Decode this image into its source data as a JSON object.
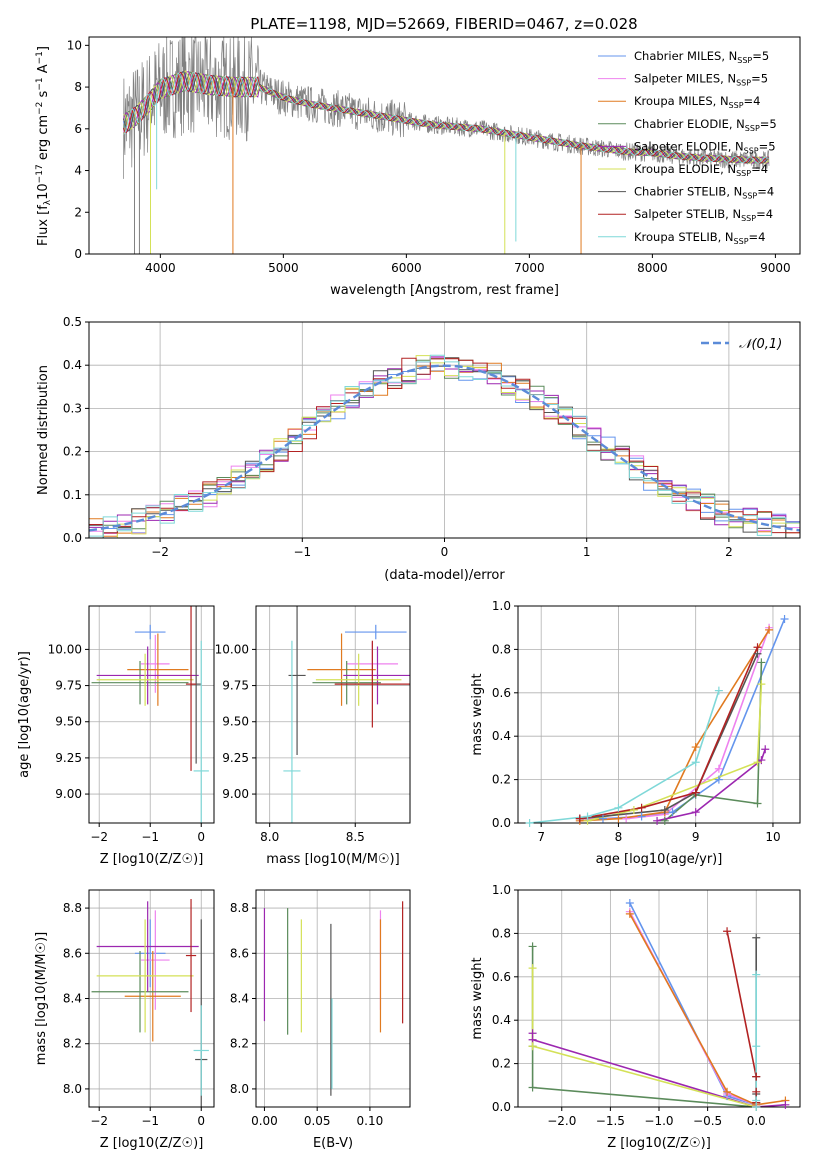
{
  "figure": {
    "title": "PLATE=1198, MJD=52669, FIBERID=0467, z=0.028"
  },
  "series_styles": [
    {
      "name": "Chabrier MILES, N_SSP=5",
      "label_main": "Chabrier MILES, N",
      "label_sub": "SSP",
      "label_end": "=5",
      "color": "#6495ed"
    },
    {
      "name": "Salpeter MILES, N_SSP=5",
      "label_main": "Salpeter MILES, N",
      "label_sub": "SSP",
      "label_end": "=5",
      "color": "#ee82ee"
    },
    {
      "name": "Kroupa MILES, N_SSP=4",
      "label_main": "Kroupa MILES, N",
      "label_sub": "SSP",
      "label_end": "=4",
      "color": "#e07a20"
    },
    {
      "name": "Chabrier ELODIE, N_SSP=5",
      "label_main": "Chabrier ELODIE, N",
      "label_sub": "SSP",
      "label_end": "=5",
      "color": "#5b8b5b"
    },
    {
      "name": "Salpeter ELODIE, N_SSP=5",
      "label_main": "Salpeter ELODIE, N",
      "label_sub": "SSP",
      "label_end": "=5",
      "color": "#9c27b0"
    },
    {
      "name": "Kroupa ELODIE, N_SSP=4",
      "label_main": "Kroupa ELODIE, N",
      "label_sub": "SSP",
      "label_end": "=4",
      "color": "#d4e157"
    },
    {
      "name": "Chabrier STELIB, N_SSP=4",
      "label_main": "Chabrier STELIB, N",
      "label_sub": "SSP",
      "label_end": "=4",
      "color": "#555555"
    },
    {
      "name": "Salpeter STELIB, N_SSP=4",
      "label_main": "Salpeter STELIB, N",
      "label_sub": "SSP",
      "label_end": "=4",
      "color": "#b22222"
    },
    {
      "name": "Kroupa STELIB, N_SSP=4",
      "label_main": "Kroupa STELIB, N",
      "label_sub": "SSP",
      "label_end": "=4",
      "color": "#7fd8d8"
    }
  ],
  "chart_data": [
    {
      "id": "spectrum",
      "type": "line",
      "title": "PLATE=1198, MJD=52669, FIBERID=0467, z=0.028",
      "xlabel": "wavelength [Angstrom, rest frame]",
      "ylabel": "Flux [f_λ 10^-17 erg cm^-2 s^-1 A^-1]",
      "xlim": [
        3420,
        9200
      ],
      "ylim": [
        0,
        10.4
      ],
      "xticks": [
        4000,
        5000,
        6000,
        7000,
        8000,
        9000
      ],
      "yticks": [
        0,
        2,
        4,
        6,
        8,
        10
      ],
      "legend_position": "top-right",
      "data_color": "#808080",
      "continuum": {
        "x": [
          3700,
          3800,
          3900,
          4000,
          4200,
          4400,
          4600,
          4800,
          5000,
          5200,
          5400,
          5600,
          5800,
          6000,
          6200,
          6400,
          6600,
          6800,
          7000,
          7200,
          7400,
          7600,
          7800,
          8000,
          8200,
          8400,
          8600,
          8800,
          8950
        ],
        "y": [
          6.2,
          6.6,
          7.2,
          7.9,
          8.3,
          8.1,
          8.0,
          8.0,
          7.5,
          7.2,
          7.0,
          6.8,
          6.6,
          6.4,
          6.2,
          6.1,
          6.0,
          5.8,
          5.6,
          5.4,
          5.2,
          5.05,
          4.9,
          4.85,
          4.7,
          4.6,
          4.55,
          4.5,
          4.5
        ]
      },
      "dropouts": [
        {
          "x": 3790,
          "ymin": 0,
          "color": "#808080"
        },
        {
          "x": 3830,
          "ymin": 0,
          "color": "#808080"
        },
        {
          "x": 3920,
          "ymin": 0,
          "color": "#d4e157"
        },
        {
          "x": 3970,
          "ymin": 3.1,
          "color": "#7fd8d8"
        },
        {
          "x": 4590,
          "ymin": 0,
          "color": "#e07a20"
        },
        {
          "x": 6800,
          "ymin": 0,
          "color": "#d4e157"
        },
        {
          "x": 6890,
          "ymin": 0.6,
          "color": "#7fd8d8"
        },
        {
          "x": 7420,
          "ymin": 0,
          "color": "#e07a20"
        }
      ]
    },
    {
      "id": "residuals",
      "type": "histogram",
      "xlabel": "(data-model)/error",
      "ylabel": "Normed distribution",
      "xlim": [
        -2.5,
        2.5
      ],
      "ylim": [
        0,
        0.5
      ],
      "xticks": [
        -2,
        -1,
        0,
        1,
        2
      ],
      "yticks": [
        0.0,
        0.1,
        0.2,
        0.3,
        0.4,
        0.5
      ],
      "bin_width": 0.1,
      "reference_curve": {
        "name": "𝒩(0,1)",
        "color": "#5b8bd8",
        "mean": 0,
        "sigma": 1
      },
      "legend_position": "top-right",
      "grid": true
    },
    {
      "id": "age-vs-Z",
      "type": "errorbar",
      "xlabel": "Z [log10(Z/Z☉)]",
      "ylabel": "age [log10(age/yr)]",
      "xlim": [
        -2.2,
        0.25
      ],
      "ylim": [
        8.8,
        10.3
      ],
      "xticks": [
        -2,
        -1,
        0
      ],
      "yticks": [
        9.0,
        9.25,
        9.5,
        9.75,
        10.0
      ],
      "points": [
        {
          "x": -1.0,
          "xerr": 0.3,
          "y": 10.12,
          "yerr": 0.05
        },
        {
          "x": -0.9,
          "xerr": 0.28,
          "y": 9.9,
          "yerr": 0.2
        },
        {
          "x": -0.85,
          "xerr": 0.6,
          "y": 9.86,
          "yerr": 0.25
        },
        {
          "x": -1.2,
          "xerr": 0.95,
          "y": 9.77,
          "yerr": 0.15
        },
        {
          "x": -1.05,
          "xerr": 1.0,
          "y": 9.82,
          "yerr": 0.2
        },
        {
          "x": -1.1,
          "xerr": 0.95,
          "y": 9.79,
          "yerr": 0.18
        },
        {
          "x": -0.1,
          "xerr": 0.1,
          "y": 9.76,
          "yerr": 0.55
        },
        {
          "x": -0.2,
          "xerr": 0.1,
          "y": 9.76,
          "yerr": 0.6
        },
        {
          "x": 0.0,
          "xerr": 0.15,
          "y": 9.16,
          "yerr": 0.9
        }
      ]
    },
    {
      "id": "age-vs-mass",
      "type": "errorbar",
      "xlabel": "mass [log10(M/M☉)]",
      "ylabel": "",
      "xlim": [
        7.92,
        8.82
      ],
      "ylim": [
        8.8,
        10.3
      ],
      "xticks": [
        8.0,
        8.5
      ],
      "yticks": [
        9.0,
        9.25,
        9.5,
        9.75,
        10.0
      ],
      "points": [
        {
          "x": 8.62,
          "xerr": 0.18,
          "y": 10.12,
          "yerr": 0.05
        },
        {
          "x": 8.6,
          "xerr": 0.15,
          "y": 9.9,
          "yerr": 0.15
        },
        {
          "x": 8.42,
          "xerr": 0.2,
          "y": 9.86,
          "yerr": 0.25
        },
        {
          "x": 8.45,
          "xerr": 0.2,
          "y": 9.77,
          "yerr": 0.15
        },
        {
          "x": 8.63,
          "xerr": 0.2,
          "y": 9.82,
          "yerr": 0.2
        },
        {
          "x": 8.52,
          "xerr": 0.25,
          "y": 9.79,
          "yerr": 0.18
        },
        {
          "x": 8.16,
          "xerr": 0.05,
          "y": 9.82,
          "yerr": 0.55
        },
        {
          "x": 8.6,
          "xerr": 0.22,
          "y": 9.76,
          "yerr": 0.3
        },
        {
          "x": 8.13,
          "xerr": 0.05,
          "y": 9.16,
          "yerr": 0.9
        }
      ]
    },
    {
      "id": "weight-vs-age",
      "type": "line",
      "xlabel": "age [log10(age/yr)]",
      "ylabel": "mass weight",
      "xlim": [
        6.7,
        10.35
      ],
      "ylim": [
        0,
        1.0
      ],
      "xticks": [
        7,
        8,
        9,
        10
      ],
      "yticks": [
        0.0,
        0.2,
        0.4,
        0.6,
        0.8,
        1.0
      ],
      "series": [
        {
          "x": [
            7.8,
            8.3,
            8.7,
            9.3,
            10.15
          ],
          "y": [
            0.02,
            0.03,
            0.05,
            0.2,
            0.94
          ]
        },
        {
          "x": [
            7.5,
            8.1,
            8.6,
            9.3,
            9.95
          ],
          "y": [
            0.02,
            0.02,
            0.04,
            0.25,
            0.9
          ]
        },
        {
          "x": [
            7.5,
            8.0,
            8.6,
            9.0,
            9.95
          ],
          "y": [
            0.01,
            0.02,
            0.05,
            0.35,
            0.89
          ]
        },
        {
          "x": [
            8.6,
            9.0,
            9.8,
            9.85
          ],
          "y": [
            0.01,
            0.13,
            0.09,
            0.74
          ]
        },
        {
          "x": [
            8.5,
            9.0,
            9.85,
            9.9
          ],
          "y": [
            0.01,
            0.05,
            0.29,
            0.34
          ]
        },
        {
          "x": [
            7.6,
            8.2,
            9.8,
            9.85
          ],
          "y": [
            0.01,
            0.06,
            0.28,
            0.64
          ]
        },
        {
          "x": [
            7.5,
            8.6,
            9.0,
            9.8
          ],
          "y": [
            0.02,
            0.06,
            0.14,
            0.78
          ]
        },
        {
          "x": [
            7.5,
            8.3,
            9.0,
            9.8
          ],
          "y": [
            0.02,
            0.07,
            0.14,
            0.81
          ]
        },
        {
          "x": [
            6.85,
            7.6,
            8.0,
            9.0,
            9.3
          ],
          "y": [
            0.0,
            0.03,
            0.07,
            0.28,
            0.61
          ]
        }
      ]
    },
    {
      "id": "mass-vs-Z",
      "type": "errorbar",
      "xlabel": "Z [log10(Z/Z☉)]",
      "ylabel": "mass [log10(M/M☉)]",
      "xlim": [
        -2.2,
        0.25
      ],
      "ylim": [
        7.92,
        8.88
      ],
      "xticks": [
        -2,
        -1,
        0
      ],
      "yticks": [
        8.0,
        8.2,
        8.4,
        8.6,
        8.8
      ],
      "points": [
        {
          "x": -1.0,
          "xerr": 0.3,
          "y": 8.6,
          "yerr": 0.15
        },
        {
          "x": -0.9,
          "xerr": 0.28,
          "y": 8.57,
          "yerr": 0.22
        },
        {
          "x": -0.95,
          "xerr": 0.55,
          "y": 8.41,
          "yerr": 0.2
        },
        {
          "x": -1.2,
          "xerr": 0.95,
          "y": 8.43,
          "yerr": 0.18
        },
        {
          "x": -1.05,
          "xerr": 1.0,
          "y": 8.63,
          "yerr": 0.2
        },
        {
          "x": -1.1,
          "xerr": 0.95,
          "y": 8.5,
          "yerr": 0.25
        },
        {
          "x": 0.0,
          "xerr": 0.12,
          "y": 8.13,
          "yerr": 0.62
        },
        {
          "x": -0.2,
          "xerr": 0.1,
          "y": 8.59,
          "yerr": 0.25
        },
        {
          "x": 0.0,
          "xerr": 0.15,
          "y": 8.17,
          "yerr": 0.2
        }
      ]
    },
    {
      "id": "mass-vs-EBV",
      "type": "errorbar",
      "xlabel": "E(B-V)",
      "ylabel": "",
      "xlim": [
        -0.008,
        0.138
      ],
      "ylim": [
        7.92,
        8.88
      ],
      "xticks": [
        0.0,
        0.05,
        0.1
      ],
      "yticks": [
        8.0,
        8.2,
        8.4,
        8.6,
        8.8
      ],
      "points": [
        {
          "x": 0.0,
          "y": 8.55,
          "yerr": 0.25,
          "color_index": 4
        },
        {
          "x": 0.022,
          "y": 8.52,
          "yerr": 0.28,
          "color_index": 3
        },
        {
          "x": 0.035,
          "y": 8.5,
          "yerr": 0.25,
          "color_index": 5
        },
        {
          "x": 0.063,
          "y": 8.35,
          "yerr": 0.38,
          "color_index": 6
        },
        {
          "x": 0.064,
          "y": 8.2,
          "yerr": 0.2,
          "color_index": 8
        },
        {
          "x": 0.11,
          "y": 8.57,
          "yerr": 0.22,
          "color_index": 1
        },
        {
          "x": 0.11,
          "y": 8.5,
          "yerr": 0.25,
          "color_index": 2
        },
        {
          "x": 0.131,
          "y": 8.56,
          "yerr": 0.27,
          "color_index": 7
        }
      ]
    },
    {
      "id": "weight-vs-Z",
      "type": "line",
      "xlabel": "Z [log10(Z/Z☉)]",
      "ylabel": "mass weight",
      "xlim": [
        -2.45,
        0.45
      ],
      "ylim": [
        0,
        1.0
      ],
      "xticks": [
        -2.0,
        -1.5,
        -1.0,
        -0.5,
        0.0
      ],
      "yticks": [
        0.0,
        0.2,
        0.4,
        0.6,
        0.8,
        1.0
      ],
      "series": [
        {
          "x": [
            -1.3,
            -0.3,
            0.0,
            0.0
          ],
          "y": [
            0.94,
            0.05,
            0.01,
            0.0
          ]
        },
        {
          "x": [
            -1.3,
            -0.3,
            0.0,
            0.0
          ],
          "y": [
            0.9,
            0.06,
            0.01,
            0.0
          ]
        },
        {
          "x": [
            -1.3,
            -0.3,
            0.0,
            0.3
          ],
          "y": [
            0.89,
            0.07,
            0.01,
            0.03
          ]
        },
        {
          "x": [
            -2.3,
            -2.3,
            -2.3,
            0.0
          ],
          "y": [
            0.74,
            0.28,
            0.09,
            0.0
          ]
        },
        {
          "x": [
            -2.3,
            -2.3,
            0.0,
            0.3
          ],
          "y": [
            0.34,
            0.31,
            0.0,
            0.01
          ]
        },
        {
          "x": [
            -2.3,
            -2.3,
            0.0
          ],
          "y": [
            0.64,
            0.28,
            0.0
          ]
        },
        {
          "x": [
            0.0,
            0.0,
            0.0,
            0.0
          ],
          "y": [
            0.78,
            0.14,
            0.06,
            0.02
          ]
        },
        {
          "x": [
            -0.3,
            0.0,
            0.0,
            0.0
          ],
          "y": [
            0.81,
            0.14,
            0.07,
            0.02
          ]
        },
        {
          "x": [
            0.0,
            0.0,
            0.0,
            0.0
          ],
          "y": [
            0.61,
            0.28,
            0.03,
            0.0
          ]
        }
      ]
    }
  ]
}
